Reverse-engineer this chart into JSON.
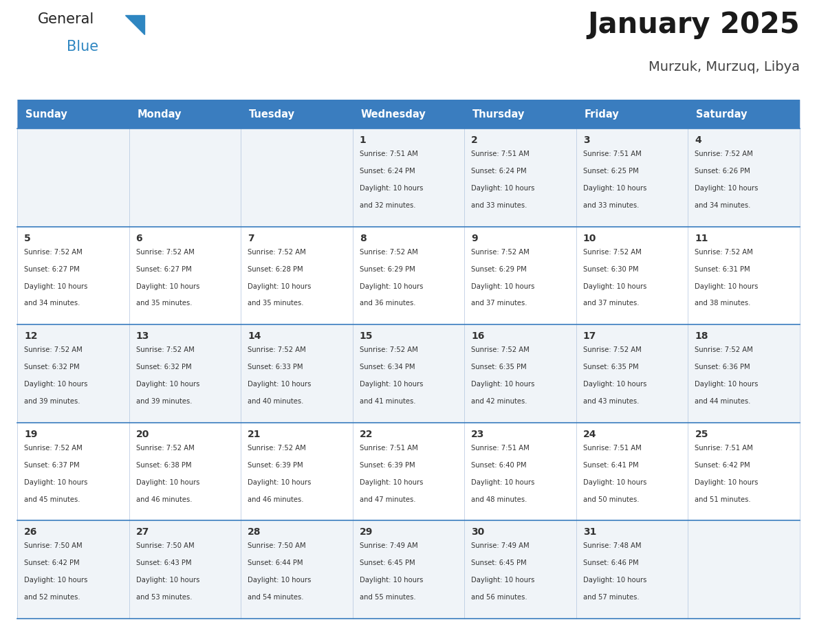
{
  "title": "January 2025",
  "subtitle": "Murzuk, Murzuq, Libya",
  "header_bg": "#3a7dbf",
  "header_text_color": "#ffffff",
  "row_bg_odd": "#f0f4f8",
  "row_bg_even": "#ffffff",
  "border_color": "#3a7dbf",
  "divider_color": "#b0c4de",
  "text_color": "#333333",
  "days_of_week": [
    "Sunday",
    "Monday",
    "Tuesday",
    "Wednesday",
    "Thursday",
    "Friday",
    "Saturday"
  ],
  "calendar": [
    [
      {
        "day": "",
        "sunrise": "",
        "sunset": "",
        "hours": "",
        "minutes": ""
      },
      {
        "day": "",
        "sunrise": "",
        "sunset": "",
        "hours": "",
        "minutes": ""
      },
      {
        "day": "",
        "sunrise": "",
        "sunset": "",
        "hours": "",
        "minutes": ""
      },
      {
        "day": "1",
        "sunrise": "7:51 AM",
        "sunset": "6:24 PM",
        "hours": "10",
        "minutes": "32"
      },
      {
        "day": "2",
        "sunrise": "7:51 AM",
        "sunset": "6:24 PM",
        "hours": "10",
        "minutes": "33"
      },
      {
        "day": "3",
        "sunrise": "7:51 AM",
        "sunset": "6:25 PM",
        "hours": "10",
        "minutes": "33"
      },
      {
        "day": "4",
        "sunrise": "7:52 AM",
        "sunset": "6:26 PM",
        "hours": "10",
        "minutes": "34"
      }
    ],
    [
      {
        "day": "5",
        "sunrise": "7:52 AM",
        "sunset": "6:27 PM",
        "hours": "10",
        "minutes": "34"
      },
      {
        "day": "6",
        "sunrise": "7:52 AM",
        "sunset": "6:27 PM",
        "hours": "10",
        "minutes": "35"
      },
      {
        "day": "7",
        "sunrise": "7:52 AM",
        "sunset": "6:28 PM",
        "hours": "10",
        "minutes": "35"
      },
      {
        "day": "8",
        "sunrise": "7:52 AM",
        "sunset": "6:29 PM",
        "hours": "10",
        "minutes": "36"
      },
      {
        "day": "9",
        "sunrise": "7:52 AM",
        "sunset": "6:29 PM",
        "hours": "10",
        "minutes": "37"
      },
      {
        "day": "10",
        "sunrise": "7:52 AM",
        "sunset": "6:30 PM",
        "hours": "10",
        "minutes": "37"
      },
      {
        "day": "11",
        "sunrise": "7:52 AM",
        "sunset": "6:31 PM",
        "hours": "10",
        "minutes": "38"
      }
    ],
    [
      {
        "day": "12",
        "sunrise": "7:52 AM",
        "sunset": "6:32 PM",
        "hours": "10",
        "minutes": "39"
      },
      {
        "day": "13",
        "sunrise": "7:52 AM",
        "sunset": "6:32 PM",
        "hours": "10",
        "minutes": "39"
      },
      {
        "day": "14",
        "sunrise": "7:52 AM",
        "sunset": "6:33 PM",
        "hours": "10",
        "minutes": "40"
      },
      {
        "day": "15",
        "sunrise": "7:52 AM",
        "sunset": "6:34 PM",
        "hours": "10",
        "minutes": "41"
      },
      {
        "day": "16",
        "sunrise": "7:52 AM",
        "sunset": "6:35 PM",
        "hours": "10",
        "minutes": "42"
      },
      {
        "day": "17",
        "sunrise": "7:52 AM",
        "sunset": "6:35 PM",
        "hours": "10",
        "minutes": "43"
      },
      {
        "day": "18",
        "sunrise": "7:52 AM",
        "sunset": "6:36 PM",
        "hours": "10",
        "minutes": "44"
      }
    ],
    [
      {
        "day": "19",
        "sunrise": "7:52 AM",
        "sunset": "6:37 PM",
        "hours": "10",
        "minutes": "45"
      },
      {
        "day": "20",
        "sunrise": "7:52 AM",
        "sunset": "6:38 PM",
        "hours": "10",
        "minutes": "46"
      },
      {
        "day": "21",
        "sunrise": "7:52 AM",
        "sunset": "6:39 PM",
        "hours": "10",
        "minutes": "46"
      },
      {
        "day": "22",
        "sunrise": "7:51 AM",
        "sunset": "6:39 PM",
        "hours": "10",
        "minutes": "47"
      },
      {
        "day": "23",
        "sunrise": "7:51 AM",
        "sunset": "6:40 PM",
        "hours": "10",
        "minutes": "48"
      },
      {
        "day": "24",
        "sunrise": "7:51 AM",
        "sunset": "6:41 PM",
        "hours": "10",
        "minutes": "50"
      },
      {
        "day": "25",
        "sunrise": "7:51 AM",
        "sunset": "6:42 PM",
        "hours": "10",
        "minutes": "51"
      }
    ],
    [
      {
        "day": "26",
        "sunrise": "7:50 AM",
        "sunset": "6:42 PM",
        "hours": "10",
        "minutes": "52"
      },
      {
        "day": "27",
        "sunrise": "7:50 AM",
        "sunset": "6:43 PM",
        "hours": "10",
        "minutes": "53"
      },
      {
        "day": "28",
        "sunrise": "7:50 AM",
        "sunset": "6:44 PM",
        "hours": "10",
        "minutes": "54"
      },
      {
        "day": "29",
        "sunrise": "7:49 AM",
        "sunset": "6:45 PM",
        "hours": "10",
        "minutes": "55"
      },
      {
        "day": "30",
        "sunrise": "7:49 AM",
        "sunset": "6:45 PM",
        "hours": "10",
        "minutes": "56"
      },
      {
        "day": "31",
        "sunrise": "7:48 AM",
        "sunset": "6:46 PM",
        "hours": "10",
        "minutes": "57"
      },
      {
        "day": "",
        "sunrise": "",
        "sunset": "",
        "hours": "",
        "minutes": ""
      }
    ]
  ],
  "logo_general_color": "#222222",
  "logo_blue_color": "#2e86c1",
  "logo_triangle_color": "#2e86c1"
}
